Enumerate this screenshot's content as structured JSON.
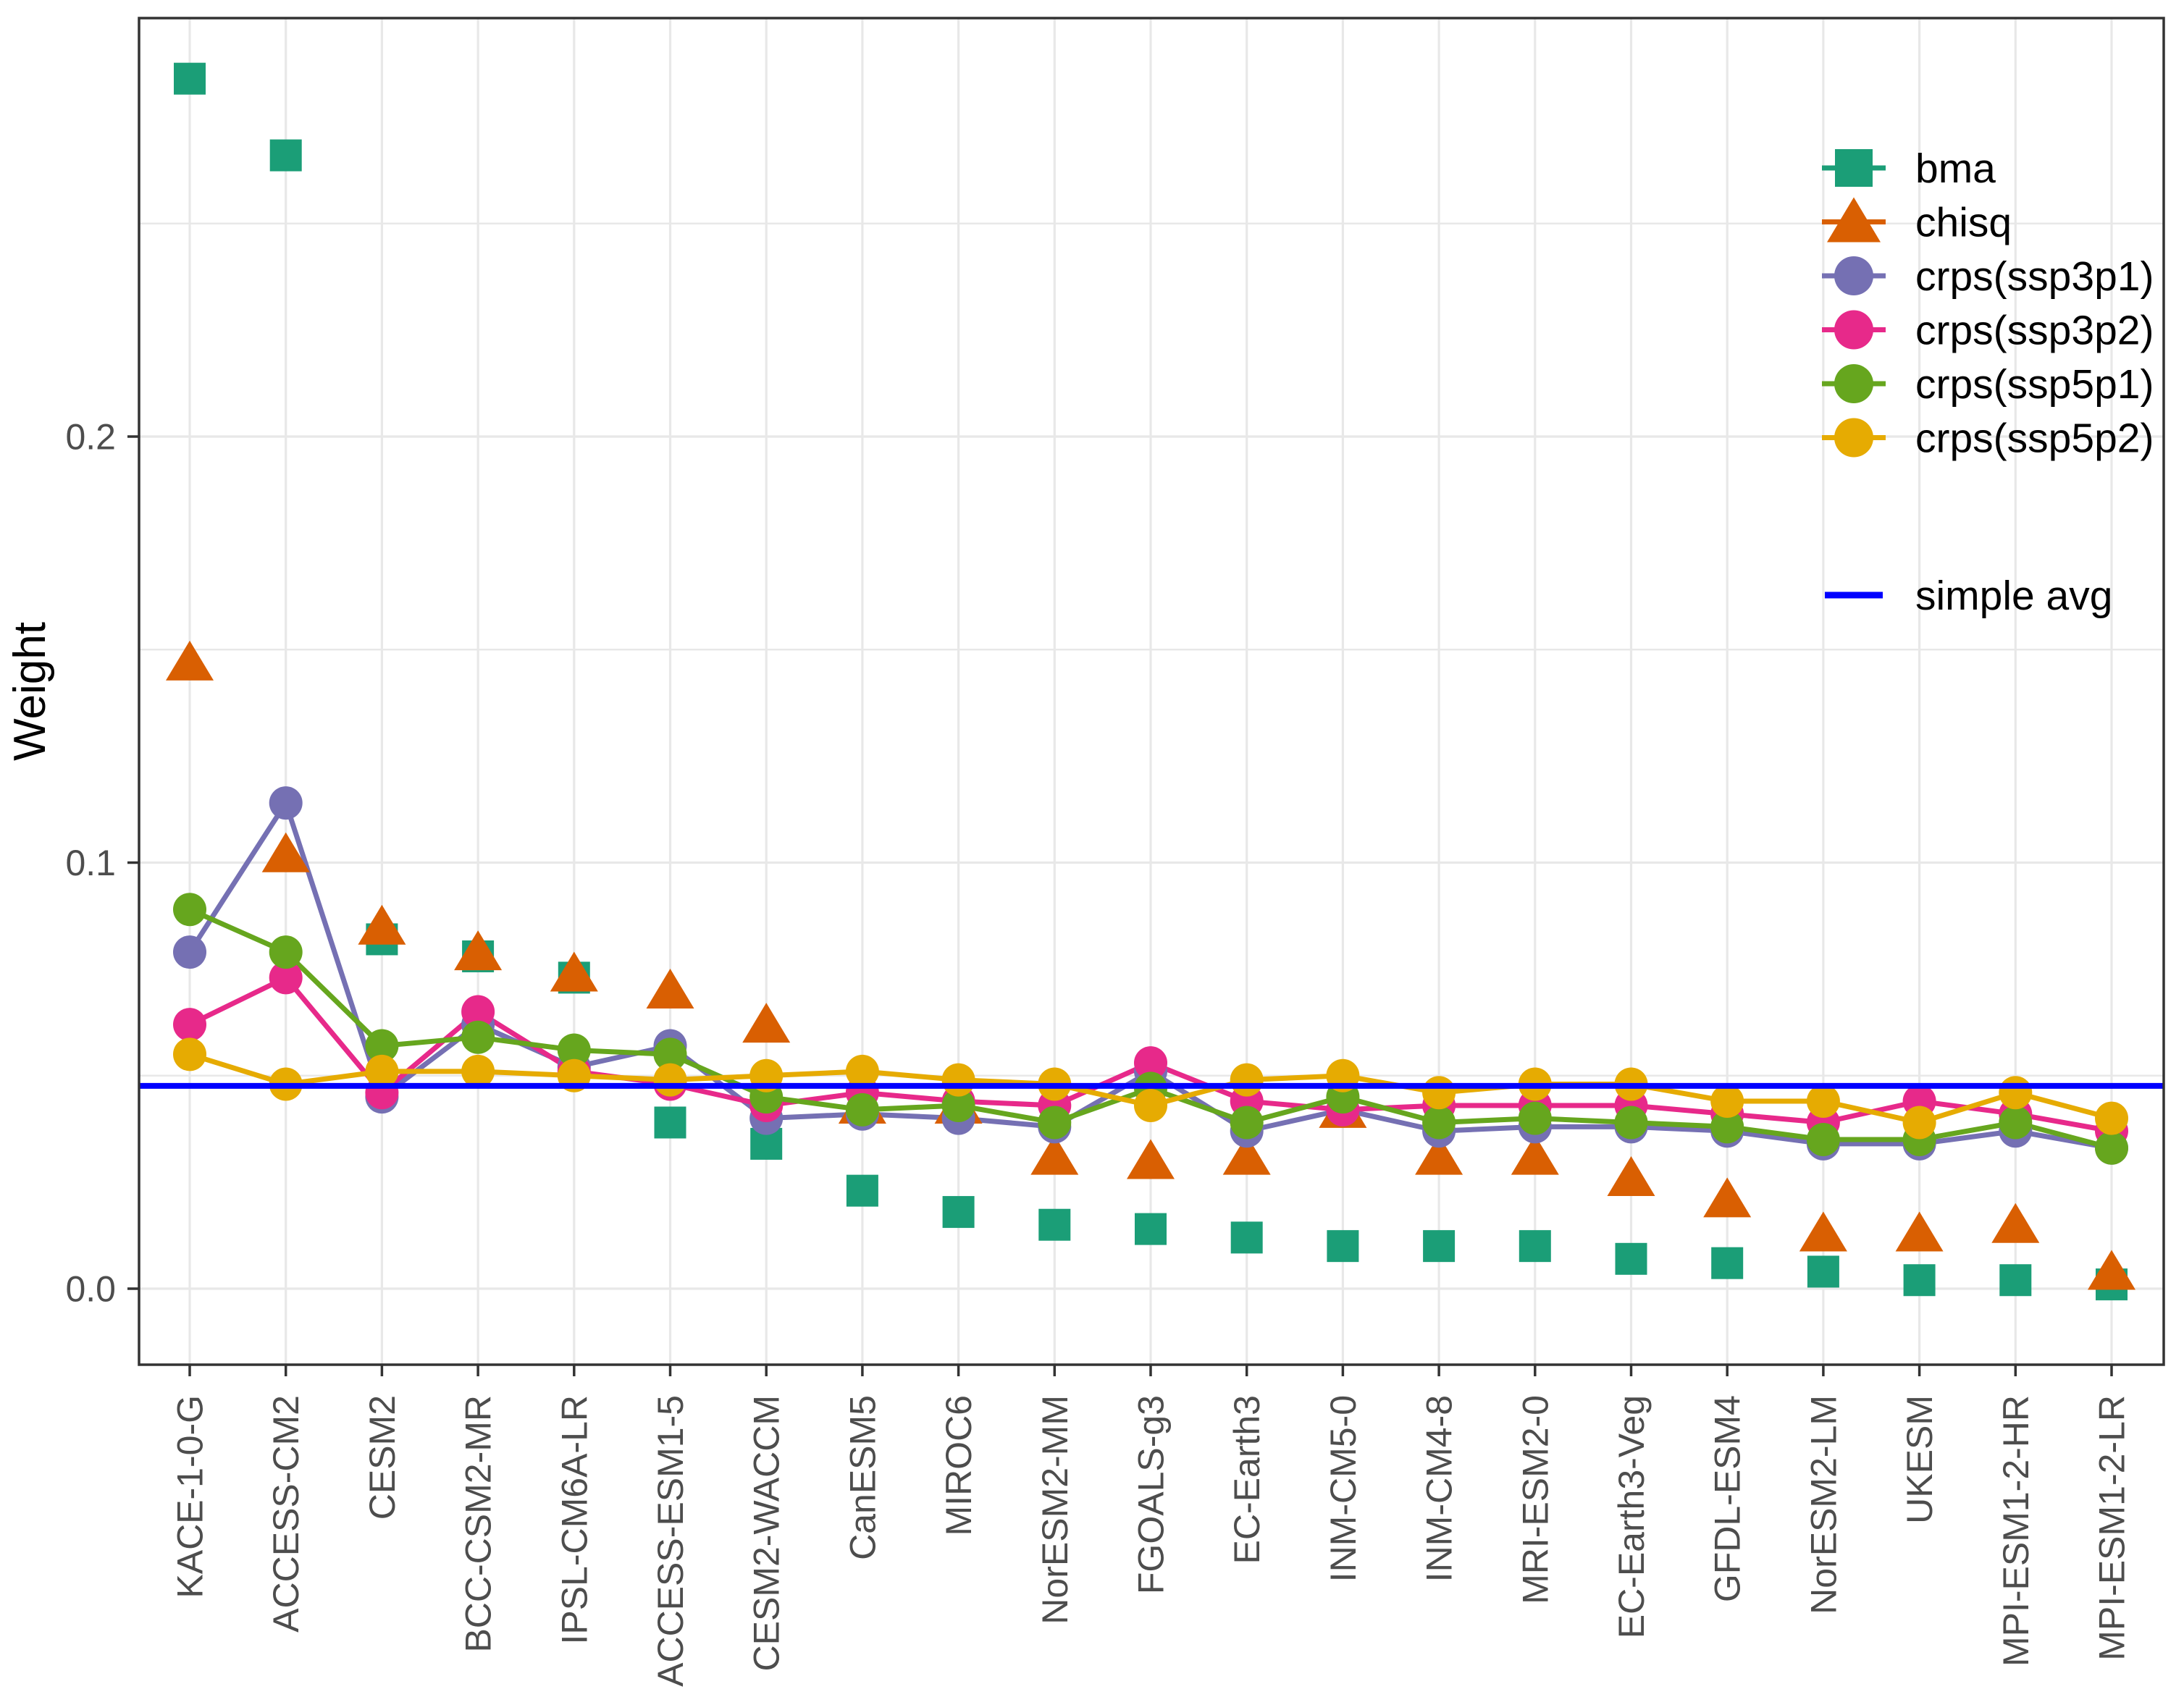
{
  "chart_data": {
    "type": "scatter",
    "title": "",
    "xlabel": "",
    "ylabel": "Weight",
    "grid": true,
    "legend_position": "inside top-right",
    "ylim": [
      -0.018,
      0.298
    ],
    "ytick_labels": [
      "0.0",
      "0.1",
      "0.2"
    ],
    "yticks": [
      0.0,
      0.1,
      0.2
    ],
    "yticks_minor": [
      0.05,
      0.15,
      0.25
    ],
    "categories": [
      "KACE-1-0-G",
      "ACCESS-CM2",
      "CESM2",
      "BCC-CSM2-MR",
      "IPSL-CM6A-LR",
      "ACCESS-ESM1-5",
      "CESM2-WACCM",
      "CanESM5",
      "MIROC6",
      "NorESM2-MM",
      "FGOALS-g3",
      "EC-Earth3",
      "INM-CM5-0",
      "INM-CM4-8",
      "MRI-ESM2-0",
      "EC-Earth3-Veg",
      "GFDL-ESM4",
      "NorESM2-LM",
      "UKESM",
      "MPI-ESM1-2-HR",
      "MPI-ESM1-2-LR"
    ],
    "series": [
      {
        "name": "bma",
        "marker": "square",
        "color": "#1b9e77",
        "connected": false,
        "values": [
          0.284,
          0.266,
          0.082,
          0.078,
          0.073,
          0.039,
          0.034,
          0.023,
          0.018,
          0.015,
          0.014,
          0.012,
          0.01,
          0.01,
          0.01,
          0.007,
          0.006,
          0.004,
          0.002,
          0.002,
          0.001
        ]
      },
      {
        "name": "chisq",
        "marker": "triangle",
        "color": "#d95f02",
        "connected": false,
        "values": [
          0.147,
          0.102,
          0.085,
          0.079,
          0.074,
          0.07,
          0.062,
          0.043,
          0.043,
          0.031,
          0.03,
          0.031,
          0.042,
          0.031,
          0.031,
          0.026,
          0.021,
          0.013,
          0.013,
          0.015,
          0.004
        ]
      },
      {
        "name": "crps(ssp3p1)",
        "marker": "circle",
        "color": "#7570b3",
        "connected": true,
        "values": [
          0.079,
          0.114,
          0.045,
          0.062,
          0.052,
          0.057,
          0.04,
          0.041,
          0.04,
          0.038,
          0.051,
          0.037,
          0.042,
          0.037,
          0.038,
          0.038,
          0.037,
          0.034,
          0.034,
          0.037,
          0.033
        ]
      },
      {
        "name": "crps(ssp3p2)",
        "marker": "circle",
        "color": "#e7298a",
        "connected": true,
        "values": [
          0.062,
          0.073,
          0.046,
          0.065,
          0.051,
          0.048,
          0.043,
          0.046,
          0.044,
          0.043,
          0.053,
          0.044,
          0.042,
          0.043,
          0.043,
          0.043,
          0.041,
          0.039,
          0.044,
          0.041,
          0.037
        ]
      },
      {
        "name": "crps(ssp5p1)",
        "marker": "circle",
        "color": "#66a61e",
        "connected": true,
        "values": [
          0.089,
          0.079,
          0.057,
          0.059,
          0.056,
          0.055,
          0.045,
          0.042,
          0.043,
          0.039,
          0.047,
          0.039,
          0.045,
          0.039,
          0.04,
          0.039,
          0.038,
          0.035,
          0.035,
          0.039,
          0.033
        ]
      },
      {
        "name": "crps(ssp5p2)",
        "marker": "circle",
        "color": "#e6ab02",
        "connected": true,
        "values": [
          0.055,
          0.048,
          0.051,
          0.051,
          0.05,
          0.049,
          0.05,
          0.051,
          0.049,
          0.048,
          0.043,
          0.049,
          0.05,
          0.046,
          0.048,
          0.048,
          0.044,
          0.044,
          0.039,
          0.046,
          0.04
        ]
      }
    ],
    "reference_line": {
      "label": "simple avg",
      "value": 0.0476,
      "color": "#0000ff"
    },
    "colors": {
      "grid": "#e8e8e8",
      "panel_border": "#333333",
      "tick_text": "#4d4d4d",
      "background": "#ffffff"
    }
  }
}
